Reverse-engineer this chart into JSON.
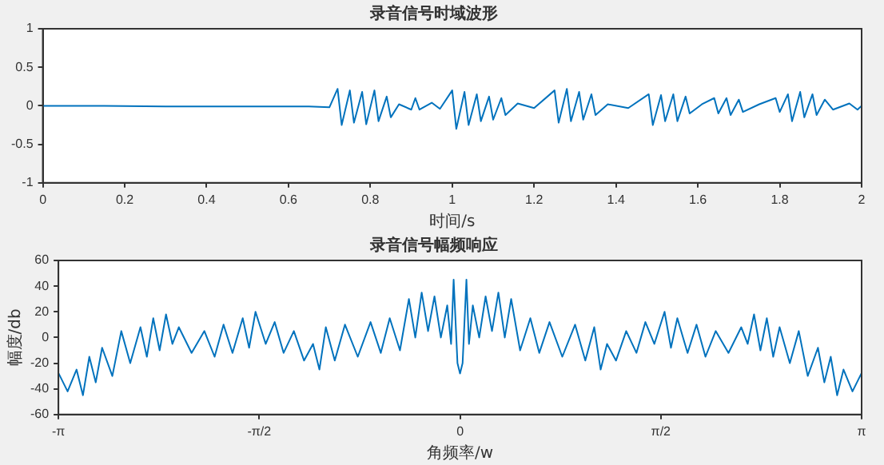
{
  "chart_data": [
    {
      "type": "line",
      "title": "录音信号时域波形",
      "xlabel": "时间/s",
      "xlim": [
        0,
        2
      ],
      "xticks": [
        0,
        0.2,
        0.4,
        0.6,
        0.8,
        1,
        1.2,
        1.4,
        1.6,
        1.8,
        2
      ],
      "ylim": [
        -1,
        1
      ],
      "yticks": [
        -1,
        -0.5,
        0,
        0.5,
        1
      ],
      "grid": false,
      "legend": false,
      "marker": "none",
      "line_style": "solid",
      "series": [
        {
          "color": "#0072bd",
          "x": [
            0,
            0.15,
            0.3,
            0.5,
            0.65,
            0.7,
            0.72,
            0.73,
            0.75,
            0.76,
            0.78,
            0.79,
            0.81,
            0.82,
            0.84,
            0.85,
            0.87,
            0.9,
            0.91,
            0.92,
            0.95,
            0.97,
            1.0,
            1.01,
            1.03,
            1.04,
            1.06,
            1.07,
            1.09,
            1.1,
            1.12,
            1.13,
            1.16,
            1.2,
            1.25,
            1.26,
            1.28,
            1.29,
            1.31,
            1.32,
            1.34,
            1.35,
            1.38,
            1.43,
            1.48,
            1.49,
            1.51,
            1.52,
            1.54,
            1.55,
            1.57,
            1.58,
            1.61,
            1.64,
            1.65,
            1.67,
            1.68,
            1.7,
            1.71,
            1.75,
            1.79,
            1.8,
            1.82,
            1.83,
            1.85,
            1.86,
            1.88,
            1.89,
            1.91,
            1.93,
            1.97,
            1.99,
            2.0
          ],
          "values": [
            0,
            0,
            -0.01,
            -0.01,
            -0.01,
            -0.02,
            0.22,
            -0.25,
            0.2,
            -0.22,
            0.18,
            -0.24,
            0.2,
            -0.2,
            0.12,
            -0.15,
            0.02,
            -0.05,
            0.1,
            -0.05,
            0.04,
            -0.04,
            0.2,
            -0.3,
            0.18,
            -0.25,
            0.15,
            -0.2,
            0.12,
            -0.18,
            0.1,
            -0.12,
            0.03,
            -0.03,
            0.2,
            -0.22,
            0.22,
            -0.2,
            0.18,
            -0.18,
            0.15,
            -0.12,
            0.02,
            -0.03,
            0.15,
            -0.25,
            0.14,
            -0.2,
            0.15,
            -0.2,
            0.12,
            -0.1,
            0.02,
            0.1,
            -0.1,
            0.1,
            -0.12,
            0.08,
            -0.08,
            0.02,
            0.1,
            -0.08,
            0.15,
            -0.2,
            0.18,
            -0.15,
            0.15,
            -0.12,
            0.08,
            -0.05,
            0.03,
            -0.05,
            0
          ]
        }
      ]
    },
    {
      "type": "line",
      "title": "录音信号幅频响应",
      "xlabel": "角频率/w",
      "ylabel": "幅度/db",
      "xlim": [
        -3.1416,
        3.1416
      ],
      "xticks": [
        {
          "value": -3.1416,
          "label": "-π"
        },
        {
          "value": -1.5708,
          "label": "-π/2"
        },
        0,
        {
          "value": 1.5708,
          "label": "π/2"
        },
        {
          "value": 3.1416,
          "label": "π"
        }
      ],
      "ylim": [
        -60,
        60
      ],
      "yticks": [
        -60,
        -40,
        -20,
        0,
        20,
        40,
        60
      ],
      "grid": false,
      "legend": false,
      "marker": "none",
      "line_style": "solid",
      "series": [
        {
          "color": "#0072bd",
          "x": [
            -3.14,
            -3.07,
            -3.0,
            -2.95,
            -2.9,
            -2.85,
            -2.8,
            -2.72,
            -2.65,
            -2.58,
            -2.5,
            -2.45,
            -2.4,
            -2.35,
            -2.3,
            -2.25,
            -2.2,
            -2.1,
            -2.0,
            -1.92,
            -1.85,
            -1.78,
            -1.7,
            -1.65,
            -1.6,
            -1.52,
            -1.45,
            -1.38,
            -1.3,
            -1.22,
            -1.15,
            -1.1,
            -1.05,
            -0.98,
            -0.9,
            -0.8,
            -0.7,
            -0.62,
            -0.55,
            -0.47,
            -0.4,
            -0.35,
            -0.3,
            -0.25,
            -0.2,
            -0.15,
            -0.1,
            -0.07,
            -0.05,
            -0.02,
            0,
            0.02,
            0.05,
            0.07,
            0.1,
            0.15,
            0.2,
            0.25,
            0.3,
            0.35,
            0.4,
            0.47,
            0.55,
            0.62,
            0.7,
            0.8,
            0.9,
            0.98,
            1.05,
            1.1,
            1.15,
            1.22,
            1.3,
            1.38,
            1.45,
            1.52,
            1.6,
            1.65,
            1.7,
            1.78,
            1.85,
            1.92,
            2.0,
            2.1,
            2.2,
            2.25,
            2.3,
            2.35,
            2.4,
            2.45,
            2.5,
            2.58,
            2.65,
            2.72,
            2.8,
            2.85,
            2.9,
            2.95,
            3.0,
            3.07,
            3.14
          ],
          "values": [
            -28,
            -42,
            -25,
            -45,
            -15,
            -35,
            -8,
            -30,
            5,
            -20,
            8,
            -15,
            15,
            -10,
            18,
            -5,
            8,
            -12,
            5,
            -15,
            10,
            -12,
            15,
            -8,
            20,
            -5,
            12,
            -12,
            5,
            -18,
            -5,
            -25,
            8,
            -18,
            10,
            -15,
            12,
            -12,
            15,
            -10,
            30,
            0,
            35,
            5,
            32,
            0,
            25,
            -5,
            45,
            -20,
            -28,
            -20,
            45,
            -5,
            25,
            0,
            32,
            5,
            35,
            0,
            30,
            -10,
            15,
            -12,
            12,
            -15,
            10,
            -18,
            8,
            -25,
            -5,
            -18,
            5,
            -12,
            12,
            -5,
            20,
            -8,
            15,
            -12,
            10,
            -15,
            5,
            -12,
            8,
            -5,
            18,
            -10,
            15,
            -15,
            8,
            -20,
            5,
            -30,
            -8,
            -35,
            -15,
            -45,
            -25,
            -42,
            -28
          ]
        }
      ]
    }
  ]
}
